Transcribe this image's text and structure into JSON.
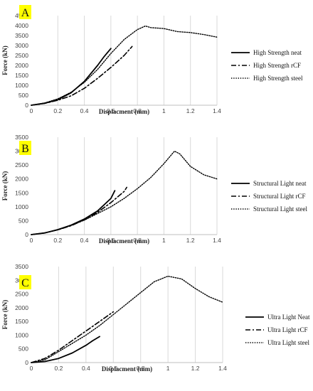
{
  "chart_data": [
    {
      "type": "line",
      "panel_label": "A",
      "xlabel": "Displacment (mm)",
      "ylabel": "Force (kN)",
      "xlim": [
        0,
        1.4
      ],
      "ylim": [
        0,
        4500
      ],
      "xticks": [
        0,
        0.2,
        0.4,
        0.6,
        0.8,
        1,
        1.2,
        1.4
      ],
      "xtick_labels": [
        "0",
        "0.2",
        "0.4",
        "0.6",
        "0.8",
        "1",
        "1.2",
        "1.4"
      ],
      "yticks": [
        0,
        500,
        1000,
        1500,
        2000,
        2500,
        3000,
        3500,
        4000,
        4500
      ],
      "grid": "vertical",
      "legend": "right",
      "series": [
        {
          "name": "High Strength neat",
          "style": "solid",
          "x": [
            0,
            0.1,
            0.2,
            0.3,
            0.4,
            0.5,
            0.55,
            0.6
          ],
          "y": [
            0,
            100,
            280,
            620,
            1200,
            2000,
            2450,
            2850
          ]
        },
        {
          "name": "High Strength rCF",
          "style": "dashdot",
          "x": [
            0,
            0.1,
            0.2,
            0.3,
            0.4,
            0.5,
            0.6,
            0.7,
            0.76
          ],
          "y": [
            0,
            90,
            250,
            470,
            850,
            1350,
            1900,
            2500,
            2950
          ]
        },
        {
          "name": "High Strength steel",
          "style": "dotted",
          "x": [
            0,
            0.1,
            0.2,
            0.3,
            0.4,
            0.5,
            0.6,
            0.7,
            0.8,
            0.86,
            0.9,
            1.0,
            1.1,
            1.2,
            1.3,
            1.4
          ],
          "y": [
            0,
            110,
            320,
            650,
            1150,
            1800,
            2600,
            3300,
            3800,
            3980,
            3900,
            3850,
            3700,
            3650,
            3550,
            3420
          ]
        }
      ]
    },
    {
      "type": "line",
      "panel_label": "B",
      "xlabel": "Displacment (mm)",
      "ylabel": "Force (kN)",
      "xlim": [
        0,
        1.4
      ],
      "ylim": [
        0,
        3500
      ],
      "xticks": [
        0,
        0.2,
        0.4,
        0.6,
        0.8,
        1,
        1.2,
        1.4
      ],
      "xtick_labels": [
        "0",
        "0.2",
        "0.4",
        "0.6",
        "0.8",
        "1",
        "1.2",
        "1.4"
      ],
      "yticks": [
        0,
        500,
        1000,
        1500,
        2000,
        2500,
        3000,
        3500
      ],
      "grid": "vertical",
      "legend": "right",
      "series": [
        {
          "name": "Structural Light neat",
          "style": "solid",
          "x": [
            0,
            0.1,
            0.2,
            0.3,
            0.4,
            0.5,
            0.6,
            0.63
          ],
          "y": [
            0,
            60,
            180,
            340,
            560,
            850,
            1300,
            1580
          ]
        },
        {
          "name": "Structural Light rCF",
          "style": "dashdot",
          "x": [
            0,
            0.1,
            0.2,
            0.3,
            0.4,
            0.5,
            0.6,
            0.7,
            0.72
          ],
          "y": [
            0,
            60,
            170,
            320,
            530,
            800,
            1150,
            1550,
            1700
          ]
        },
        {
          "name": "Structural Light steel",
          "style": "dotted",
          "x": [
            0,
            0.1,
            0.2,
            0.3,
            0.4,
            0.5,
            0.6,
            0.7,
            0.8,
            0.9,
            1.0,
            1.08,
            1.12,
            1.2,
            1.3,
            1.4
          ],
          "y": [
            0,
            60,
            170,
            330,
            520,
            760,
            1000,
            1300,
            1650,
            2050,
            2550,
            3000,
            2900,
            2450,
            2150,
            2000
          ]
        }
      ]
    },
    {
      "type": "line",
      "panel_label": "C",
      "xlabel": "Displacment (mm)",
      "ylabel": "Force (kN)",
      "xlim": [
        0,
        1.4
      ],
      "ylim": [
        0,
        3500
      ],
      "xticks": [
        0,
        0.2,
        0.4,
        0.6,
        0.8,
        1,
        1.2,
        1.4
      ],
      "xtick_labels": [
        "0",
        "0.2",
        "0.4",
        "0.6",
        "0.8",
        "1",
        "1.2",
        "1.4"
      ],
      "yticks": [
        0,
        500,
        1000,
        1500,
        2000,
        2500,
        3000,
        3500
      ],
      "grid": "vertical",
      "legend": "right",
      "series": [
        {
          "name": "Ultra Light Neat",
          "style": "solid",
          "x": [
            0,
            0.1,
            0.2,
            0.3,
            0.4,
            0.45,
            0.5
          ],
          "y": [
            0,
            40,
            150,
            350,
            630,
            800,
            950
          ]
        },
        {
          "name": "Ultra Light rCF",
          "style": "dashdot",
          "x": [
            0,
            0.1,
            0.2,
            0.3,
            0.4,
            0.5,
            0.6
          ],
          "y": [
            0,
            150,
            450,
            800,
            1150,
            1500,
            1850
          ]
        },
        {
          "name": "Ultra Light steel",
          "style": "dotted",
          "x": [
            0,
            0.1,
            0.2,
            0.3,
            0.4,
            0.5,
            0.6,
            0.7,
            0.8,
            0.9,
            0.95,
            1.0,
            1.1,
            1.2,
            1.3,
            1.4
          ],
          "y": [
            0,
            100,
            400,
            700,
            1000,
            1350,
            1750,
            2150,
            2550,
            2950,
            3050,
            3150,
            3050,
            2700,
            2400,
            2200
          ]
        }
      ]
    }
  ]
}
